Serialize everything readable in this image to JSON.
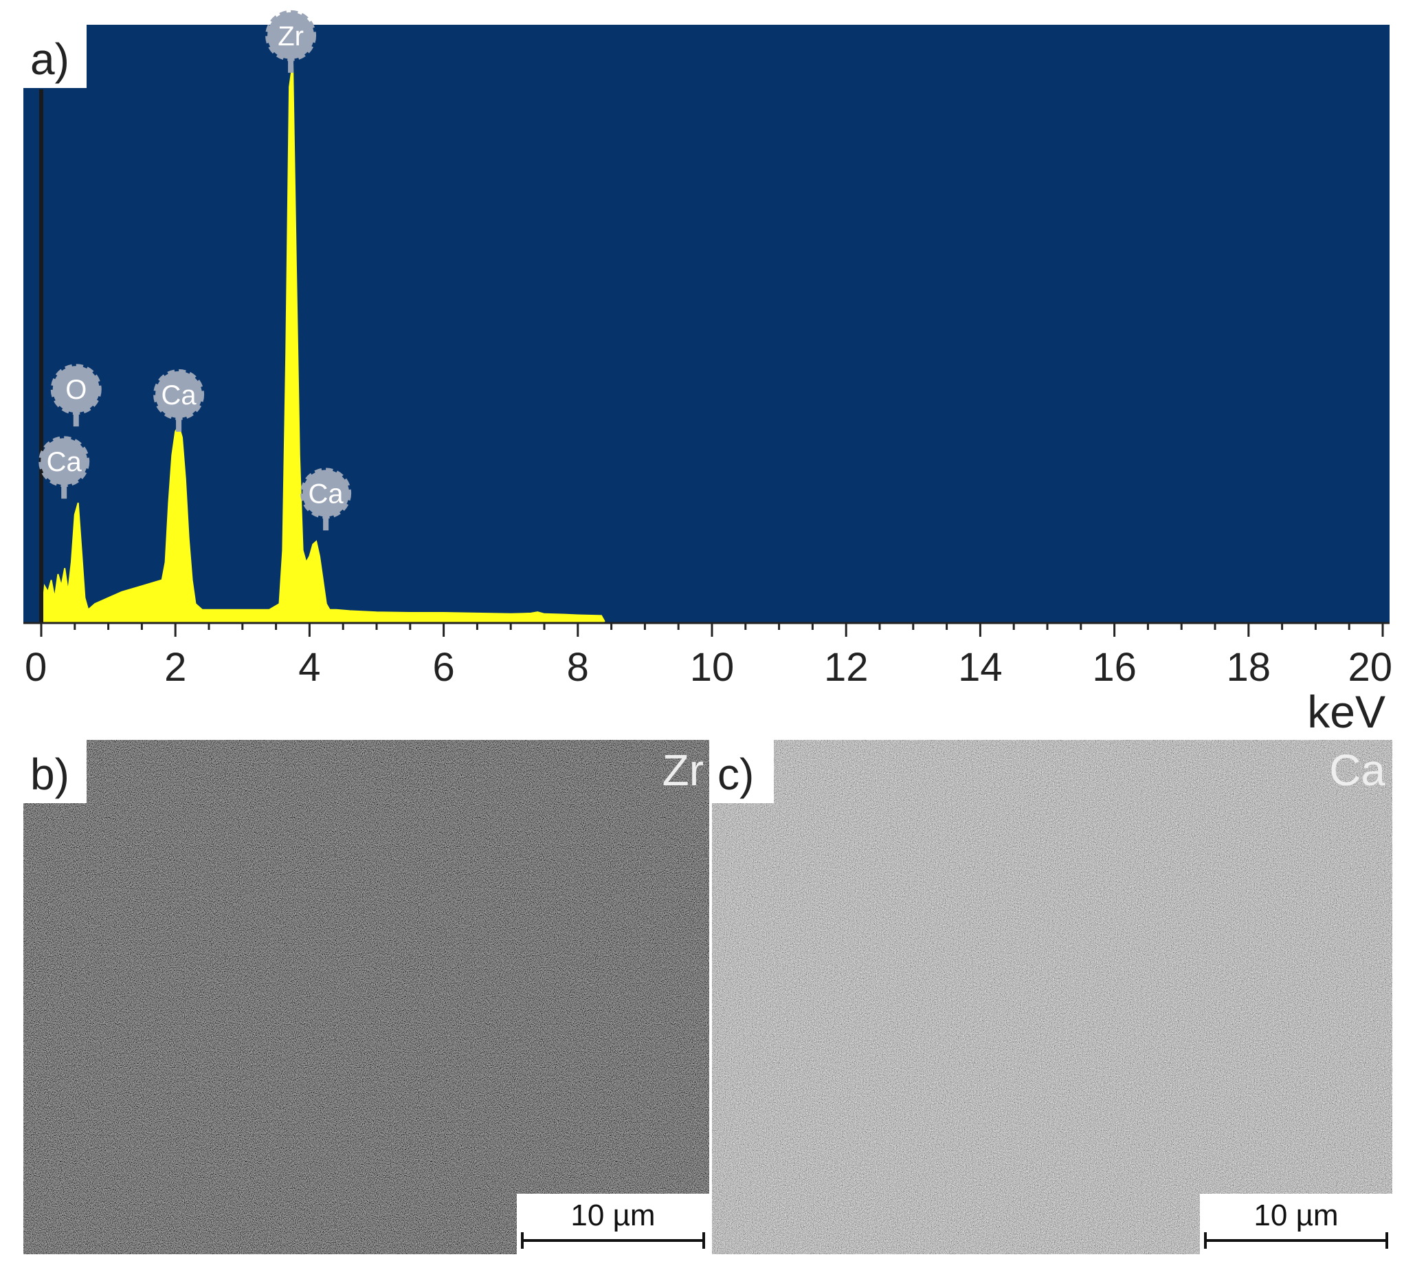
{
  "colors": {
    "spectrum_background": "#07336b",
    "spectrum_fill": "#ffff1a",
    "peak_marker": "#9aa5b8",
    "zr_map_tone": "#2e2e2e",
    "ca_map_tone": "#8f8f8f"
  },
  "panels": {
    "a": {
      "label": "a)"
    },
    "b": {
      "label": "b)",
      "element": "Zr",
      "scale_bar": "10 µm",
      "scale_bar_um": 10
    },
    "c": {
      "label": "c)",
      "element": "Ca",
      "scale_bar": "10 µm",
      "scale_bar_um": 10
    }
  },
  "chart_data": {
    "type": "area",
    "title": "",
    "xlabel": "keV",
    "ylabel": "",
    "xlim": [
      0,
      20.2
    ],
    "ylim": [
      0,
      100
    ],
    "xticks": [
      "0",
      "2",
      "4",
      "6",
      "8",
      "10",
      "12",
      "14",
      "16",
      "18",
      "20"
    ],
    "series": [
      {
        "x": [
          0.0,
          0.05,
          0.1,
          0.15,
          0.2,
          0.25,
          0.3,
          0.35,
          0.4,
          0.45,
          0.5,
          0.55,
          0.6,
          0.65,
          0.7,
          0.8,
          1.0,
          1.2,
          1.5,
          1.8,
          1.85,
          1.9,
          1.95,
          2.0,
          2.05,
          2.1,
          2.15,
          2.2,
          2.25,
          2.3,
          2.4,
          2.6,
          2.8,
          3.0,
          3.2,
          3.4,
          3.55,
          3.6,
          3.65,
          3.7,
          3.75,
          3.8,
          3.85,
          3.9,
          3.95,
          4.0,
          4.05,
          4.1,
          4.15,
          4.2,
          4.25,
          4.3,
          4.4,
          4.6,
          5.0,
          5.5,
          6.0,
          6.5,
          7.0,
          7.3,
          7.4,
          7.5,
          7.8,
          8.0,
          8.35,
          8.4
        ],
        "y": [
          0,
          6,
          5,
          7,
          4,
          8,
          6,
          9,
          5,
          10,
          18,
          20,
          12,
          4,
          2,
          3,
          4,
          5,
          6,
          7,
          10,
          20,
          28,
          32,
          33,
          31,
          24,
          14,
          7,
          3,
          2,
          2,
          2,
          2,
          2,
          2,
          3,
          12,
          45,
          90,
          94,
          60,
          28,
          12,
          10,
          11,
          13,
          13.5,
          11,
          7,
          3,
          2,
          2,
          1.8,
          1.6,
          1.5,
          1.5,
          1.4,
          1.3,
          1.4,
          1.6,
          1.3,
          1.2,
          1.1,
          1.0,
          0
        ]
      }
    ],
    "peak_labels": [
      {
        "text": "Zr",
        "x": 3.72,
        "y": 94
      },
      {
        "text": "Ca",
        "x": 2.05,
        "y": 33
      },
      {
        "text": "O",
        "x": 0.52,
        "y": 20
      },
      {
        "text": "Ca",
        "x": 0.34,
        "y": 20
      },
      {
        "text": "Ca",
        "x": 4.12,
        "y": 13.5
      }
    ],
    "grid": false,
    "legend": "none"
  }
}
